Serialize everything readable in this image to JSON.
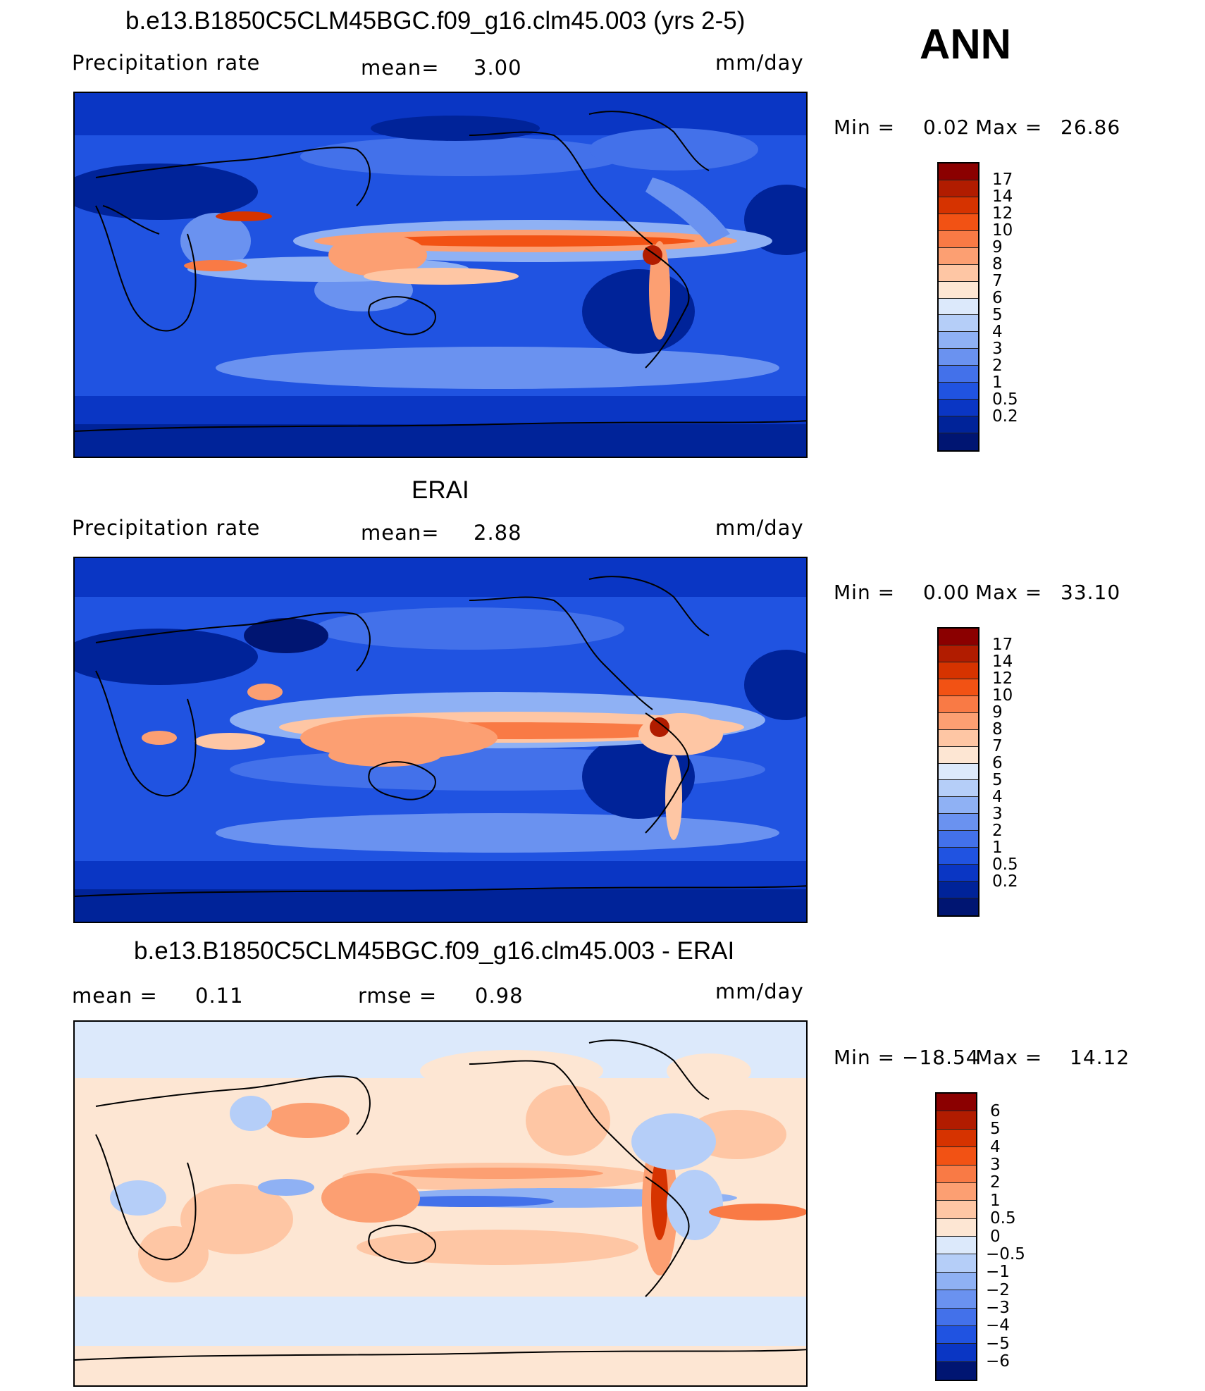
{
  "season": "ANN",
  "panels": [
    {
      "id": "model",
      "title": "b.e13.B1850C5CLM45BGC.f09_g16.clm45.003 (yrs 2-5)",
      "variable": "Precipitation rate",
      "stat1_label": "mean=",
      "stat1_value": "3.00",
      "units": "mm/day",
      "minmax_label_min": "Min =",
      "min_value": "0.02",
      "minmax_label_max": "Max =",
      "max_value": "26.86",
      "colorbar_labels": [
        "17",
        "14",
        "12",
        "10",
        "9",
        "8",
        "7",
        "6",
        "5",
        "4",
        "3",
        "2",
        "1",
        "0.5",
        "0.2"
      ],
      "colors": [
        "#8b0000",
        "#b11c00",
        "#d63300",
        "#f25214",
        "#f97a45",
        "#fc9f72",
        "#fec6a4",
        "#fde6d3",
        "#dce9fb",
        "#b5cef8",
        "#8fb1f4",
        "#6a92f0",
        "#4371ea",
        "#2053e1",
        "#0a36c4",
        "#002399",
        "#001572"
      ]
    },
    {
      "id": "obs",
      "title": "ERAI",
      "variable": "Precipitation rate",
      "stat1_label": "mean=",
      "stat1_value": "2.88",
      "units": "mm/day",
      "minmax_label_min": "Min =",
      "min_value": "0.00",
      "minmax_label_max": "Max =",
      "max_value": "33.10",
      "colorbar_labels": [
        "17",
        "14",
        "12",
        "10",
        "9",
        "8",
        "7",
        "6",
        "5",
        "4",
        "3",
        "2",
        "1",
        "0.5",
        "0.2"
      ],
      "colors": [
        "#8b0000",
        "#b11c00",
        "#d63300",
        "#f25214",
        "#f97a45",
        "#fc9f72",
        "#fec6a4",
        "#fde6d3",
        "#dce9fb",
        "#b5cef8",
        "#8fb1f4",
        "#6a92f0",
        "#4371ea",
        "#2053e1",
        "#0a36c4",
        "#002399",
        "#001572"
      ]
    },
    {
      "id": "diff",
      "title": "b.e13.B1850C5CLM45BGC.f09_g16.clm45.003 - ERAI",
      "stat1_label": "mean =",
      "stat1_value": "0.11",
      "stat2_label": "rmse =",
      "stat2_value": "0.98",
      "units": "mm/day",
      "minmax_label_min": "Min =",
      "min_value": "−18.54",
      "minmax_label_max": "Max =",
      "max_value": "14.12",
      "colorbar_labels": [
        "6",
        "5",
        "4",
        "3",
        "2",
        "1",
        "0.5",
        "0",
        "−0.5",
        "−1",
        "−2",
        "−3",
        "−4",
        "−5",
        "−6"
      ],
      "colors": [
        "#8b0000",
        "#b11c00",
        "#d63300",
        "#f25214",
        "#f97a45",
        "#fc9f72",
        "#fec6a4",
        "#fde6d3",
        "#dce9fb",
        "#b5cef8",
        "#8fb1f4",
        "#6a92f0",
        "#4371ea",
        "#2053e1",
        "#0a36c4",
        "#001572"
      ]
    }
  ]
}
